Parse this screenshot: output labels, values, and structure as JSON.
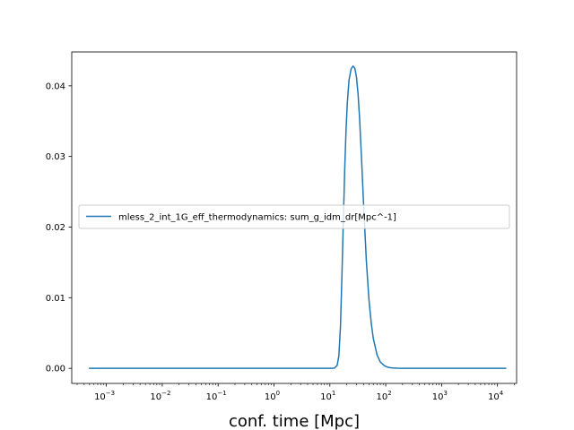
{
  "chart_data": {
    "type": "line",
    "title": "",
    "xlabel": "conf. time [Mpc]",
    "ylabel": "",
    "xscale": "log",
    "xlim": [
      0.00024,
      22000
    ],
    "ylim": [
      -0.00214,
      0.0448
    ],
    "x_tick_mantissa": "10",
    "x_ticks": [
      {
        "exp": -3,
        "exp_label": "−3"
      },
      {
        "exp": -2,
        "exp_label": "−2"
      },
      {
        "exp": -1,
        "exp_label": "−1"
      },
      {
        "exp": 0,
        "exp_label": "0"
      },
      {
        "exp": 1,
        "exp_label": "1"
      },
      {
        "exp": 2,
        "exp_label": "2"
      },
      {
        "exp": 3,
        "exp_label": "3"
      },
      {
        "exp": 4,
        "exp_label": "4"
      }
    ],
    "y_ticks": [
      {
        "value": 0.0,
        "label": "0.00"
      },
      {
        "value": 0.01,
        "label": "0.01"
      },
      {
        "value": 0.02,
        "label": "0.02"
      },
      {
        "value": 0.03,
        "label": "0.03"
      },
      {
        "value": 0.04,
        "label": "0.04"
      }
    ],
    "grid": false,
    "legend_position": "center-left",
    "series": [
      {
        "name": "mless_2_int_1G_eff_thermodynamics: sum_g_idm_dr[Mpc^-1]",
        "color": "#1f77b4",
        "x": [
          0.0005,
          0.001,
          0.01,
          0.1,
          1,
          5,
          10,
          12,
          13.5,
          14.5,
          15.5,
          16.5,
          17.5,
          18.5,
          19.5,
          20.5,
          22,
          24,
          26,
          28,
          30,
          32,
          34,
          37,
          40,
          45,
          50,
          55,
          60,
          70,
          80,
          95,
          110,
          130,
          160,
          200,
          300,
          500,
          1000,
          14000
        ],
        "y": [
          0,
          0,
          0,
          0,
          0,
          0,
          0,
          3e-05,
          0.0004,
          0.0018,
          0.006,
          0.0135,
          0.0215,
          0.0285,
          0.0338,
          0.0375,
          0.0408,
          0.0424,
          0.0428,
          0.0425,
          0.0412,
          0.0388,
          0.0355,
          0.0295,
          0.0235,
          0.0152,
          0.0098,
          0.0064,
          0.0042,
          0.0019,
          0.0009,
          0.00035,
          0.00014,
          5e-05,
          1e-05,
          0,
          0,
          0,
          0,
          0
        ]
      }
    ]
  }
}
